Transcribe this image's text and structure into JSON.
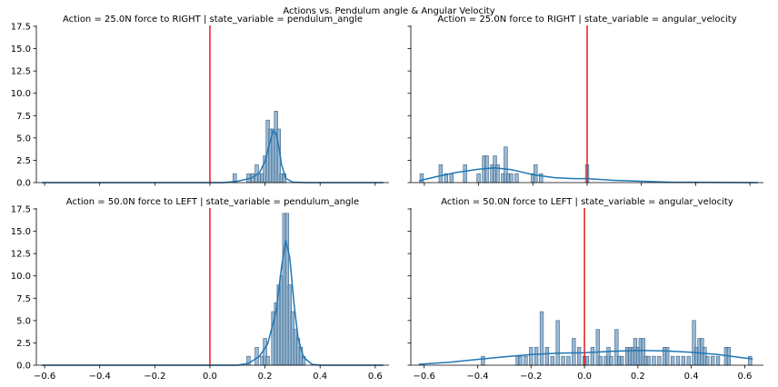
{
  "figure": {
    "suptitle": "Actions vs. Pendulum angle & Angular Velocity",
    "colors": {
      "bar_fill": "#7fa7c9",
      "bar_edge": "#3a5f80",
      "kde": "#1f77b4",
      "vline": "#e41a1c"
    }
  },
  "chart_data": [
    {
      "type": "bar",
      "title": "Action = 25.0N force to RIGHT | state_variable = pendulum_angle",
      "xlim": [
        -0.63,
        0.65
      ],
      "ylim": [
        0,
        17.6
      ],
      "yticks": [
        0.0,
        2.5,
        5.0,
        7.5,
        10.0,
        12.5,
        15.0,
        17.5
      ],
      "ytick_labels": [
        "0.0",
        "2.5",
        "5.0",
        "7.5",
        "10.0",
        "12.5",
        "15.0",
        "17.5"
      ],
      "xticks": [],
      "xtick_labels": [],
      "vline_x": 0.0,
      "bin_width": 0.0125,
      "bins": [
        [
          0.09,
          1
        ],
        [
          0.14,
          1
        ],
        [
          0.155,
          1
        ],
        [
          0.17,
          2
        ],
        [
          0.18,
          1
        ],
        [
          0.19,
          1
        ],
        [
          0.2,
          3
        ],
        [
          0.21,
          7
        ],
        [
          0.22,
          6
        ],
        [
          0.23,
          6
        ],
        [
          0.24,
          8
        ],
        [
          0.25,
          6
        ],
        [
          0.26,
          1
        ],
        [
          0.27,
          1
        ]
      ],
      "kde": [
        [
          -0.61,
          0
        ],
        [
          0.05,
          0
        ],
        [
          0.1,
          0.15
        ],
        [
          0.15,
          0.5
        ],
        [
          0.18,
          1.1
        ],
        [
          0.2,
          2.4
        ],
        [
          0.215,
          4.2
        ],
        [
          0.23,
          5.8
        ],
        [
          0.24,
          5.5
        ],
        [
          0.25,
          4.0
        ],
        [
          0.26,
          2.0
        ],
        [
          0.275,
          0.5
        ],
        [
          0.3,
          0.05
        ],
        [
          0.35,
          0
        ],
        [
          0.63,
          0
        ]
      ]
    },
    {
      "type": "bar",
      "title": "Action = 25.0N force to RIGHT | state_variable = angular_velocity",
      "xlim": [
        -0.65,
        0.65
      ],
      "ylim": [
        0,
        17.6
      ],
      "yticks": [],
      "ytick_labels": [],
      "xticks": [],
      "xtick_labels": [],
      "vline_x": 0.0,
      "bin_width": 0.0125,
      "bins": [
        [
          -0.61,
          1
        ],
        [
          -0.54,
          2
        ],
        [
          -0.52,
          1
        ],
        [
          -0.5,
          1
        ],
        [
          -0.45,
          2
        ],
        [
          -0.4,
          1
        ],
        [
          -0.38,
          3
        ],
        [
          -0.37,
          3
        ],
        [
          -0.35,
          2
        ],
        [
          -0.34,
          3
        ],
        [
          -0.33,
          2
        ],
        [
          -0.31,
          1
        ],
        [
          -0.3,
          4
        ],
        [
          -0.29,
          1
        ],
        [
          -0.28,
          1
        ],
        [
          -0.26,
          1
        ],
        [
          -0.2,
          1
        ],
        [
          -0.19,
          2
        ],
        [
          -0.17,
          1
        ],
        [
          0.0,
          2
        ]
      ],
      "kde": [
        [
          -0.62,
          0.2
        ],
        [
          -0.55,
          0.7
        ],
        [
          -0.48,
          1.15
        ],
        [
          -0.4,
          1.5
        ],
        [
          -0.34,
          1.65
        ],
        [
          -0.28,
          1.45
        ],
        [
          -0.2,
          0.9
        ],
        [
          -0.12,
          0.55
        ],
        [
          -0.05,
          0.45
        ],
        [
          0.0,
          0.45
        ],
        [
          0.1,
          0.25
        ],
        [
          0.3,
          0.05
        ],
        [
          0.63,
          0
        ]
      ]
    },
    {
      "type": "bar",
      "title": "Action = 50.0N force to LEFT | state_variable = pendulum_angle",
      "xlim": [
        -0.63,
        0.65
      ],
      "ylim": [
        0,
        17.6
      ],
      "yticks": [
        0.0,
        2.5,
        5.0,
        7.5,
        10.0,
        12.5,
        15.0,
        17.5
      ],
      "ytick_labels": [
        "0.0",
        "2.5",
        "5.0",
        "7.5",
        "10.0",
        "12.5",
        "15.0",
        "17.5"
      ],
      "xticks": [
        -0.6,
        -0.4,
        -0.2,
        0.0,
        0.2,
        0.4,
        0.6
      ],
      "xtick_labels": [
        "−0.6",
        "−0.4",
        "−0.2",
        "0.0",
        "0.2",
        "0.4",
        "0.6"
      ],
      "vline_x": 0.0,
      "bin_width": 0.0125,
      "bins": [
        [
          0.14,
          1
        ],
        [
          0.17,
          2
        ],
        [
          0.19,
          1
        ],
        [
          0.2,
          3
        ],
        [
          0.21,
          1
        ],
        [
          0.23,
          6
        ],
        [
          0.24,
          7
        ],
        [
          0.25,
          9
        ],
        [
          0.26,
          10
        ],
        [
          0.27,
          17
        ],
        [
          0.28,
          17
        ],
        [
          0.29,
          9
        ],
        [
          0.3,
          6
        ],
        [
          0.31,
          4
        ],
        [
          0.32,
          3
        ],
        [
          0.33,
          2
        ],
        [
          0.34,
          1
        ]
      ],
      "kde": [
        [
          -0.61,
          0
        ],
        [
          0.1,
          0
        ],
        [
          0.14,
          0.2
        ],
        [
          0.18,
          1.0
        ],
        [
          0.21,
          2.4
        ],
        [
          0.24,
          6.0
        ],
        [
          0.26,
          11.0
        ],
        [
          0.275,
          14.0
        ],
        [
          0.29,
          12.0
        ],
        [
          0.305,
          7.0
        ],
        [
          0.32,
          3.0
        ],
        [
          0.34,
          0.9
        ],
        [
          0.37,
          0.1
        ],
        [
          0.4,
          0
        ],
        [
          0.63,
          0
        ]
      ]
    },
    {
      "type": "bar",
      "title": "Action = 50.0N force to LEFT | state_variable = angular_velocity",
      "xlim": [
        -0.65,
        0.67
      ],
      "ylim": [
        0,
        17.6
      ],
      "yticks": [],
      "ytick_labels": [],
      "xticks": [
        -0.6,
        -0.4,
        -0.2,
        0.0,
        0.2,
        0.4,
        0.6
      ],
      "xtick_labels": [
        "−0.6",
        "−0.4",
        "−0.2",
        "0.0",
        "0.2",
        "0.4",
        "0.6"
      ],
      "vline_x": 0.0,
      "bin_width": 0.0125,
      "bins": [
        [
          -0.38,
          1
        ],
        [
          -0.25,
          1
        ],
        [
          -0.24,
          1
        ],
        [
          -0.22,
          1
        ],
        [
          -0.2,
          2
        ],
        [
          -0.18,
          2
        ],
        [
          -0.16,
          6
        ],
        [
          -0.14,
          2
        ],
        [
          -0.12,
          1
        ],
        [
          -0.1,
          5
        ],
        [
          -0.08,
          1
        ],
        [
          -0.06,
          1
        ],
        [
          -0.04,
          3
        ],
        [
          -0.02,
          2
        ],
        [
          0.0,
          1
        ],
        [
          0.01,
          1
        ],
        [
          0.03,
          2
        ],
        [
          0.05,
          4
        ],
        [
          0.06,
          1
        ],
        [
          0.08,
          1
        ],
        [
          0.09,
          2
        ],
        [
          0.1,
          1
        ],
        [
          0.12,
          4
        ],
        [
          0.13,
          1
        ],
        [
          0.14,
          1
        ],
        [
          0.16,
          2
        ],
        [
          0.17,
          2
        ],
        [
          0.18,
          2
        ],
        [
          0.19,
          3
        ],
        [
          0.2,
          2
        ],
        [
          0.21,
          3
        ],
        [
          0.22,
          3
        ],
        [
          0.23,
          1
        ],
        [
          0.24,
          1
        ],
        [
          0.26,
          1
        ],
        [
          0.28,
          1
        ],
        [
          0.3,
          2
        ],
        [
          0.31,
          2
        ],
        [
          0.33,
          1
        ],
        [
          0.35,
          1
        ],
        [
          0.37,
          1
        ],
        [
          0.39,
          1
        ],
        [
          0.41,
          5
        ],
        [
          0.42,
          2
        ],
        [
          0.43,
          3
        ],
        [
          0.44,
          3
        ],
        [
          0.45,
          2
        ],
        [
          0.46,
          1
        ],
        [
          0.48,
          1
        ],
        [
          0.5,
          1
        ],
        [
          0.53,
          2
        ],
        [
          0.54,
          2
        ],
        [
          0.62,
          1
        ]
      ],
      "kde": [
        [
          -0.62,
          0.1
        ],
        [
          -0.5,
          0.35
        ],
        [
          -0.4,
          0.65
        ],
        [
          -0.3,
          0.95
        ],
        [
          -0.2,
          1.2
        ],
        [
          -0.1,
          1.35
        ],
        [
          0.0,
          1.4
        ],
        [
          0.1,
          1.55
        ],
        [
          0.2,
          1.65
        ],
        [
          0.3,
          1.6
        ],
        [
          0.4,
          1.45
        ],
        [
          0.5,
          1.2
        ],
        [
          0.6,
          0.8
        ],
        [
          0.63,
          0.7
        ]
      ]
    }
  ]
}
